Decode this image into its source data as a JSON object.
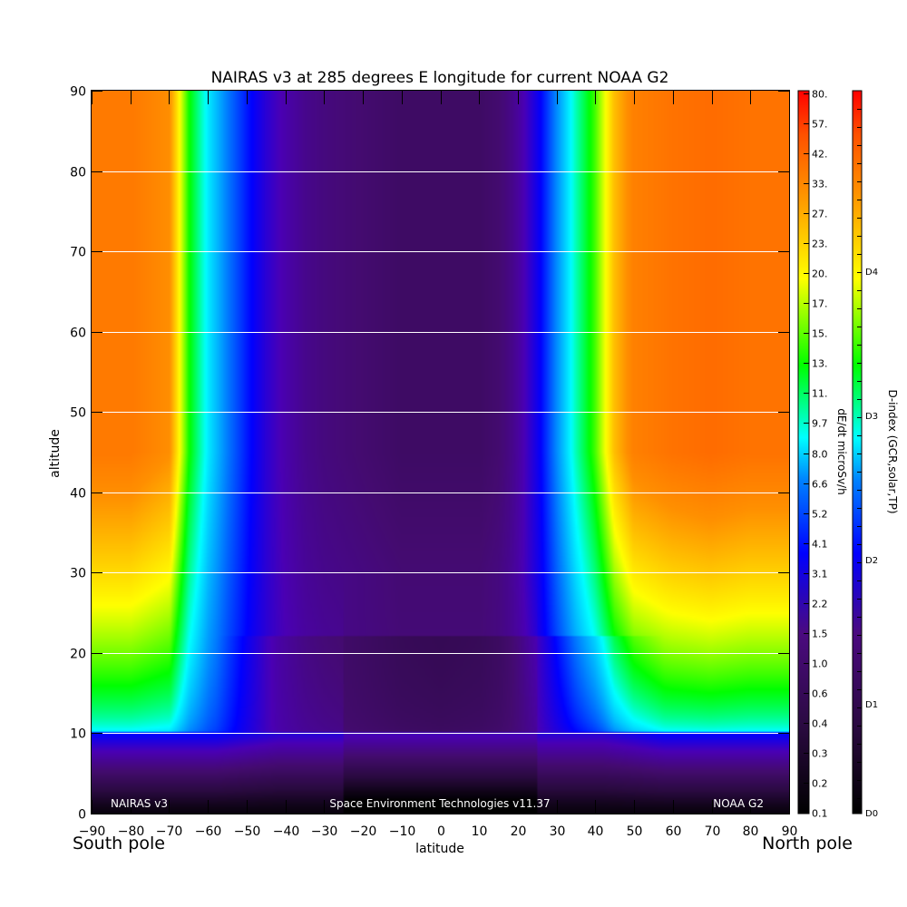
{
  "chart_data": {
    "type": "heatmap",
    "title": "NAIRAS v3 at 285 degrees E longitude for current NOAA G2",
    "xlabel": "latitude",
    "ylabel": "altitude",
    "xlim": [
      -90,
      90
    ],
    "ylim": [
      0,
      90
    ],
    "x_ticks": [
      "-90",
      "-80",
      "-70",
      "-60",
      "-50",
      "-40",
      "-30",
      "-20",
      "-10",
      "0",
      "10",
      "20",
      "30",
      "40",
      "50",
      "60",
      "70",
      "80",
      "90"
    ],
    "y_ticks": [
      "0",
      "10",
      "20",
      "30",
      "40",
      "50",
      "60",
      "70",
      "80",
      "90"
    ],
    "grid": "horizontal lines at altitude 10 through 80",
    "x_end_labels": {
      "left": "South pole",
      "right": "North pole"
    },
    "footer_left": "NAIRAS v3",
    "footer_center": "Space Environment Technologies v11.37",
    "footer_right": "NOAA G2",
    "colorbar_dose": {
      "label": "dE/dt microSv/h",
      "ticks": [
        "0.1",
        "0.2",
        "0.3",
        "0.4",
        "0.6",
        "1.0",
        "1.5",
        "2.2",
        "3.1",
        "4.1",
        "5.2",
        "6.6",
        "8.0",
        "9.7",
        "11.",
        "13.",
        "15.",
        "17.",
        "20.",
        "23.",
        "27.",
        "33.",
        "42.",
        "57.",
        "80."
      ]
    },
    "colorbar_dindex": {
      "label": "D-index (GCR,solar,TP)",
      "ticks": [
        "D0",
        "D1",
        "D2",
        "D3",
        "D4"
      ]
    },
    "colormap": [
      "#000000",
      "#2a0a40",
      "#440b70",
      "#4a00b4",
      "#0000ff",
      "#0080ff",
      "#00ffff",
      "#00ff00",
      "#ffff00",
      "#ff9000",
      "#ff5000",
      "#ff0000"
    ],
    "dose_profile": {
      "latitudes": [
        -90,
        -80,
        -70,
        -65,
        -60,
        -55,
        -50,
        -45,
        -40,
        -35,
        -30,
        -20,
        -10,
        0,
        10,
        15,
        18,
        20,
        25,
        30,
        35,
        40,
        45,
        50,
        60,
        70,
        80,
        90
      ],
      "high_altitude_levels": [
        0.85,
        0.85,
        0.82,
        0.64,
        0.53,
        0.45,
        0.38,
        0.31,
        0.26,
        0.22,
        0.2,
        0.18,
        0.16,
        0.16,
        0.16,
        0.18,
        0.21,
        0.24,
        0.34,
        0.46,
        0.57,
        0.66,
        0.78,
        0.84,
        0.86,
        0.87,
        0.86,
        0.86
      ]
    }
  }
}
